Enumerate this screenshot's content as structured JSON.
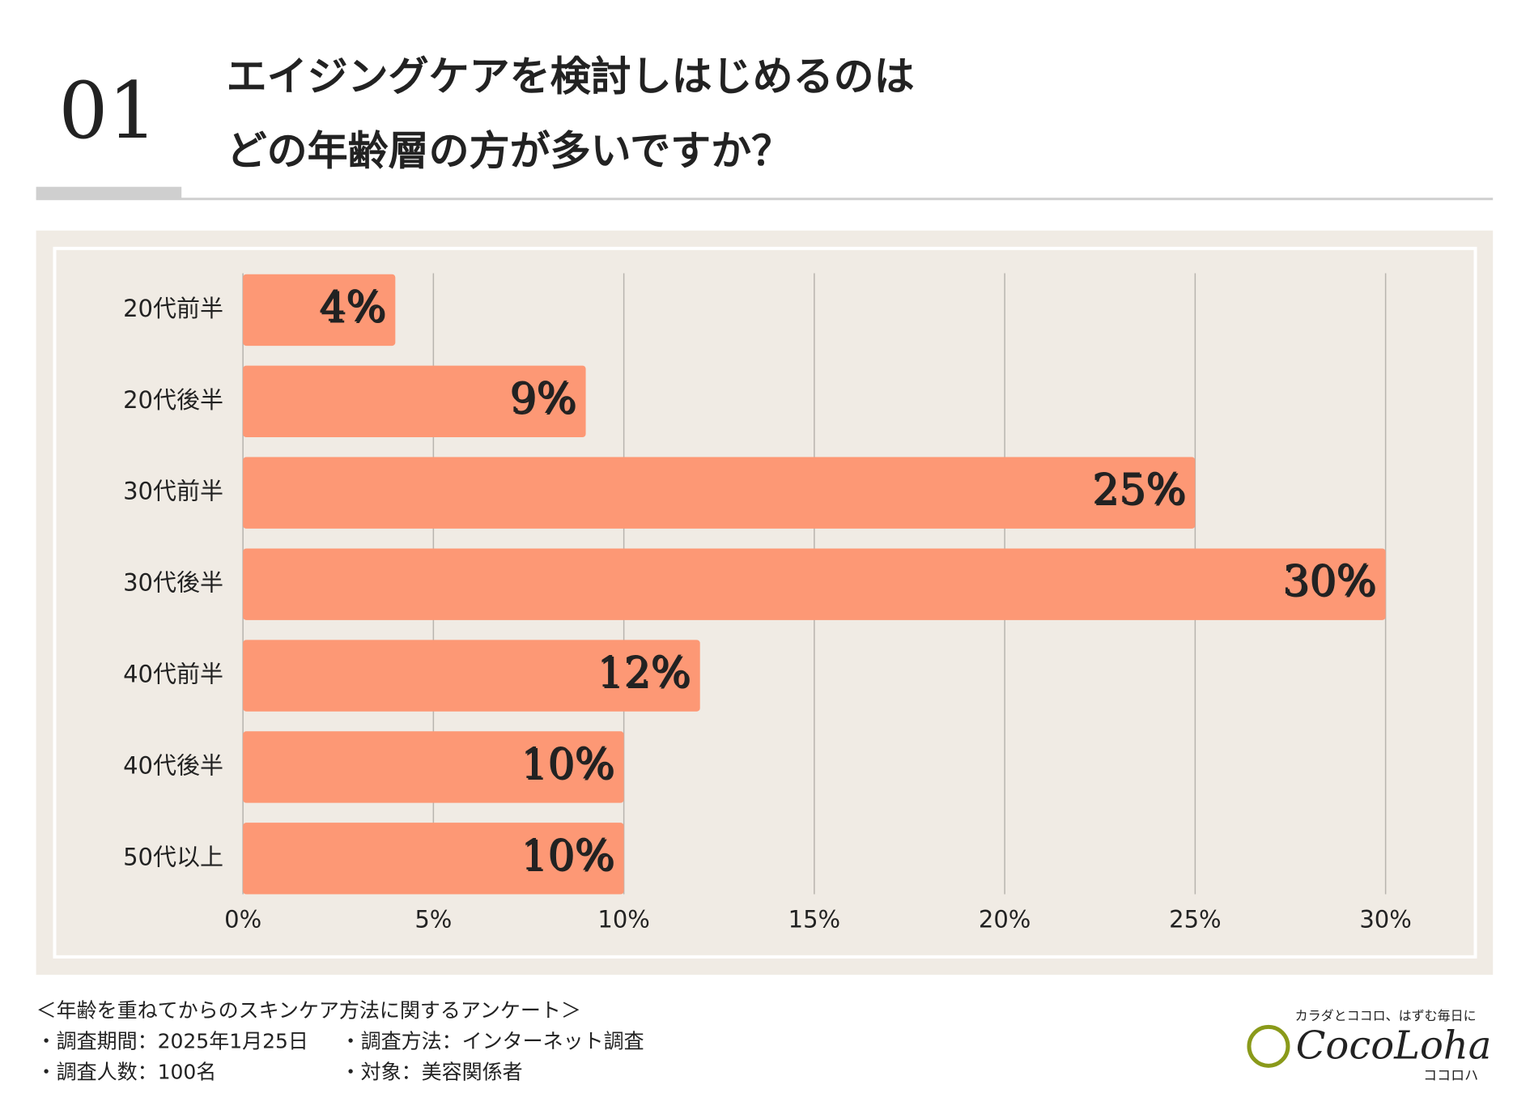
{
  "header": {
    "number": "01",
    "title_lines": [
      "エイジングケアを検討しはじめるのは",
      "どの年齢層の方が多いですか？"
    ]
  },
  "chart_data": {
    "type": "bar",
    "orientation": "horizontal",
    "categories": [
      "20代前半",
      "20代後半",
      "30代前半",
      "30代後半",
      "40代前半",
      "40代後半",
      "50代以上"
    ],
    "values": [
      4,
      9,
      25,
      30,
      12,
      10,
      10
    ],
    "value_labels": [
      "4%",
      "9%",
      "25%",
      "30%",
      "12%",
      "10%",
      "10%"
    ],
    "color": "#fd9875",
    "xlim": [
      0,
      30
    ],
    "xticks": [
      {
        "value": 0,
        "label": "0%"
      },
      {
        "value": 5,
        "label": "5%"
      },
      {
        "value": 10,
        "label": "10%"
      },
      {
        "value": 15,
        "label": "15%"
      },
      {
        "value": 20,
        "label": "20%"
      },
      {
        "value": 25,
        "label": "25%"
      },
      {
        "value": 30,
        "label": "30%"
      }
    ],
    "grid": true
  },
  "footer": {
    "survey_title": "＜年齢を重ねてからのスキンケア方法に関するアンケート＞",
    "items": [
      [
        "・調査期間：2025年1月25日",
        "・調査方法：インターネット調査"
      ],
      [
        "・調査人数：100名",
        "・対象：美容関係者"
      ]
    ]
  },
  "logo": {
    "tagline": "カラダとココロ、はずむ毎日に",
    "name": "CocoLoha",
    "kana": "ココロハ"
  }
}
